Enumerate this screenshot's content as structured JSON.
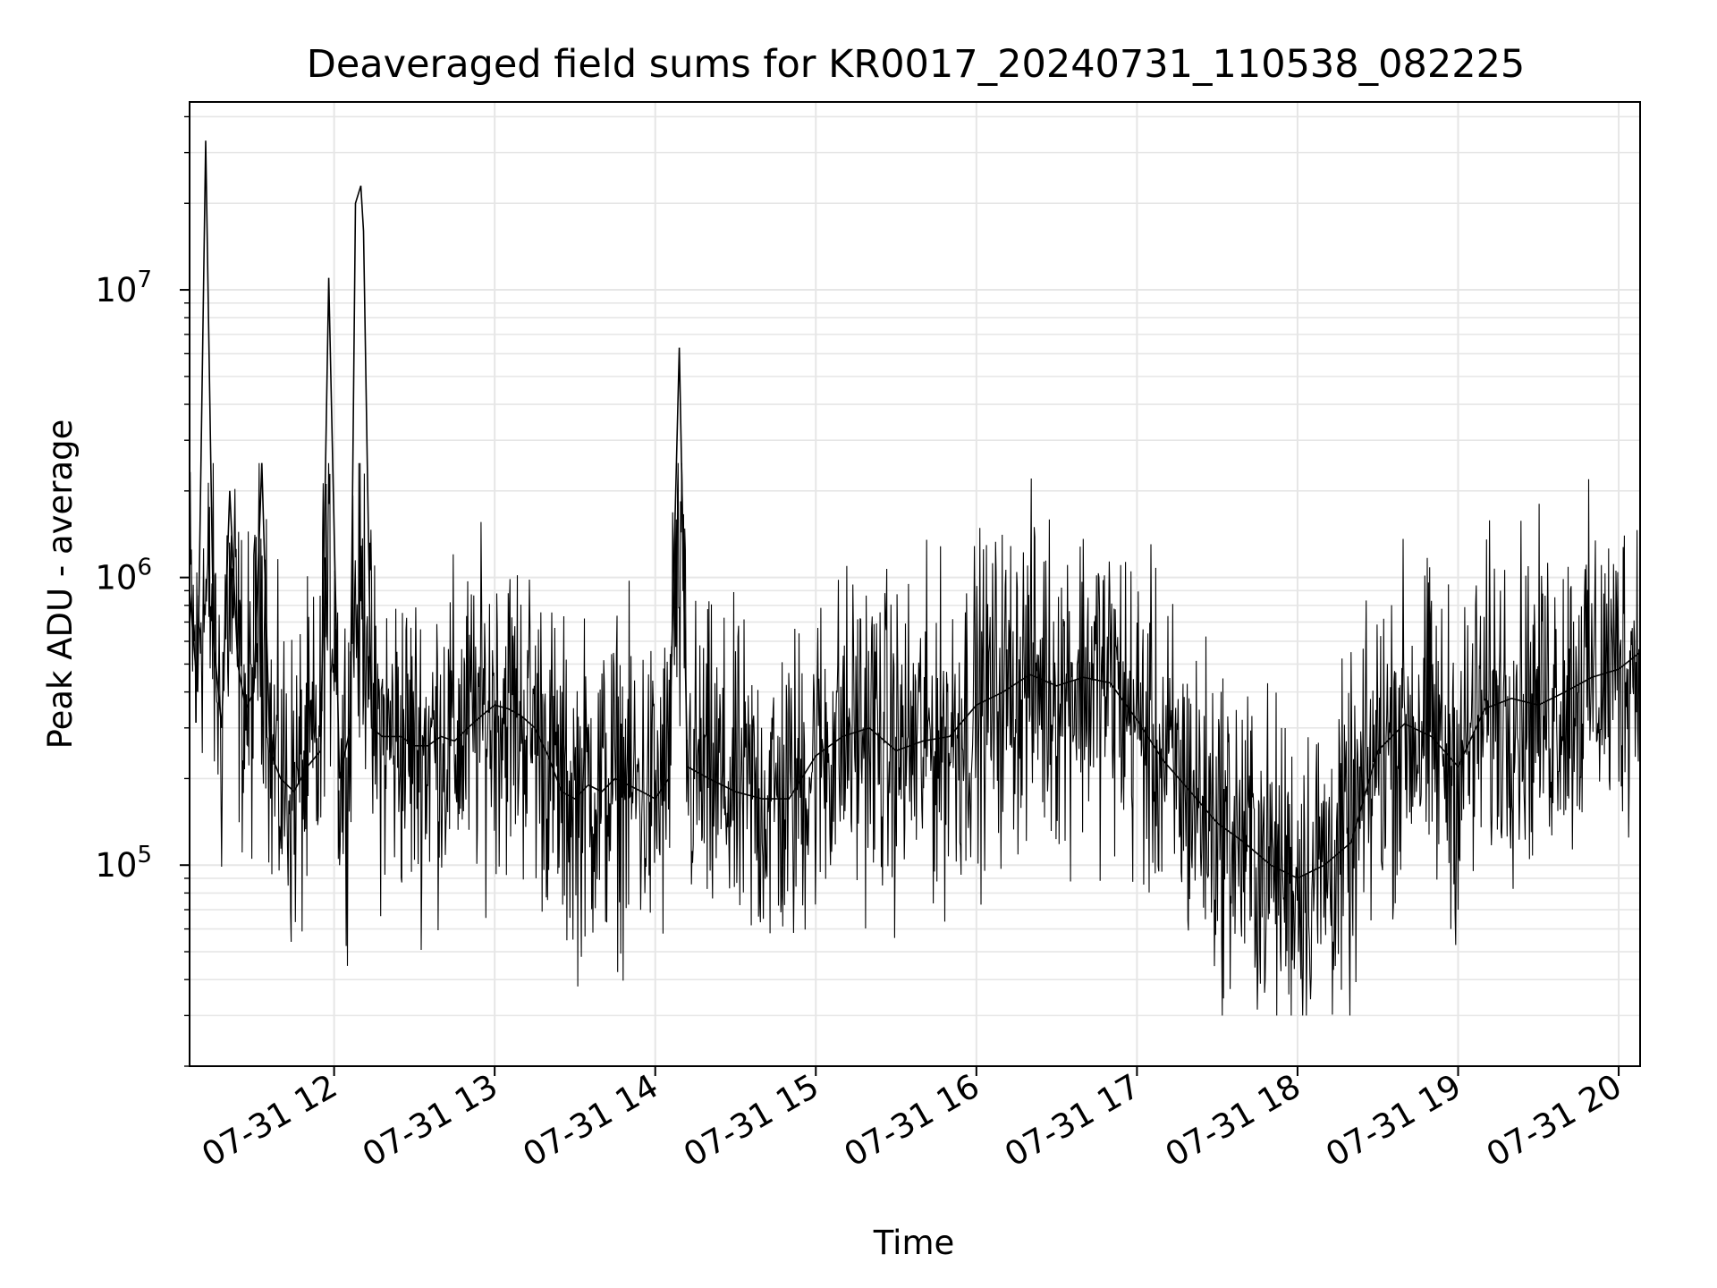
{
  "chart_data": {
    "type": "line",
    "title": "Deaveraged field sums for KR0017_20240731_110538_082225",
    "xlabel": "Time",
    "ylabel": "Peak ADU - average",
    "xscale": "time",
    "yscale": "log",
    "xlim": [
      "2024-07-31T11:06:00",
      "2024-07-31T20:08:00"
    ],
    "ylim": [
      20000,
      45000000
    ],
    "x_ticks": [
      "07-31 12",
      "07-31 13",
      "07-31 14",
      "07-31 15",
      "07-31 16",
      "07-31 17",
      "07-31 18",
      "07-31 19",
      "07-31 20"
    ],
    "y_ticks": [
      {
        "value": 100000,
        "base": "10",
        "exp": "5"
      },
      {
        "value": 1000000,
        "base": "10",
        "exp": "6"
      },
      {
        "value": 10000000,
        "base": "10",
        "exp": "7"
      }
    ],
    "grid": true,
    "line_color": "#000000",
    "series": [
      {
        "x": [
          "2024-07-31T11:06:00",
          "2024-07-31T11:09:00",
          "2024-07-31T11:12:00",
          "2024-07-31T11:15:00",
          "2024-07-31T11:18:00",
          "2024-07-31T11:21:00",
          "2024-07-31T11:24:00",
          "2024-07-31T11:27:00",
          "2024-07-31T11:30:00",
          "2024-07-31T11:33:00",
          "2024-07-31T11:36:00",
          "2024-07-31T11:40:00",
          "2024-07-31T11:45:00",
          "2024-07-31T11:50:00",
          "2024-07-31T11:55:00",
          "2024-07-31T11:58:00",
          "2024-07-31T12:02:00",
          "2024-07-31T12:06:00",
          "2024-07-31T12:08:00",
          "2024-07-31T12:10:00",
          "2024-07-31T12:11:00",
          "2024-07-31T12:14:00",
          "2024-07-31T12:18:00",
          "2024-07-31T12:25:00",
          "2024-07-31T12:30:00",
          "2024-07-31T12:35:00",
          "2024-07-31T12:40:00",
          "2024-07-31T12:45:00",
          "2024-07-31T12:50:00",
          "2024-07-31T12:55:00",
          "2024-07-31T13:00:00",
          "2024-07-31T13:05:00",
          "2024-07-31T13:10:00",
          "2024-07-31T13:15:00",
          "2024-07-31T13:20:00",
          "2024-07-31T13:25:00",
          "2024-07-31T13:30:00",
          "2024-07-31T13:35:00",
          "2024-07-31T13:40:00",
          "2024-07-31T13:45:00",
          "2024-07-31T13:50:00",
          "2024-07-31T13:55:00",
          "2024-07-31T14:00:00",
          "2024-07-31T14:05:00",
          "2024-07-31T14:09:00",
          "2024-07-31T14:12:00",
          "2024-07-31T14:20:00",
          "2024-07-31T14:30:00",
          "2024-07-31T14:40:00",
          "2024-07-31T14:50:00",
          "2024-07-31T15:00:00",
          "2024-07-31T15:10:00",
          "2024-07-31T15:20:00",
          "2024-07-31T15:30:00",
          "2024-07-31T15:40:00",
          "2024-07-31T15:50:00",
          "2024-07-31T16:00:00",
          "2024-07-31T16:10:00",
          "2024-07-31T16:20:00",
          "2024-07-31T16:30:00",
          "2024-07-31T16:40:00",
          "2024-07-31T16:50:00",
          "2024-07-31T17:00:00",
          "2024-07-31T17:10:00",
          "2024-07-31T17:20:00",
          "2024-07-31T17:30:00",
          "2024-07-31T17:40:00",
          "2024-07-31T17:50:00",
          "2024-07-31T18:00:00",
          "2024-07-31T18:10:00",
          "2024-07-31T18:20:00",
          "2024-07-31T18:30:00",
          "2024-07-31T18:40:00",
          "2024-07-31T18:50:00",
          "2024-07-31T19:00:00",
          "2024-07-31T19:10:00",
          "2024-07-31T19:20:00",
          "2024-07-31T19:30:00",
          "2024-07-31T19:40:00",
          "2024-07-31T19:50:00",
          "2024-07-31T20:00:00",
          "2024-07-31T20:08:00"
        ],
        "y": [
          900000,
          400000,
          33000000,
          600000,
          300000,
          2000000,
          500000,
          350000,
          400000,
          2500000,
          250000,
          200000,
          180000,
          220000,
          250000,
          11000000,
          200000,
          300000,
          20000000,
          23000000,
          16000000,
          300000,
          280000,
          280000,
          260000,
          260000,
          280000,
          270000,
          300000,
          330000,
          360000,
          350000,
          330000,
          300000,
          240000,
          180000,
          170000,
          190000,
          180000,
          200000,
          190000,
          180000,
          170000,
          200000,
          6300000,
          220000,
          200000,
          180000,
          170000,
          170000,
          240000,
          280000,
          300000,
          250000,
          270000,
          280000,
          360000,
          400000,
          460000,
          420000,
          450000,
          430000,
          320000,
          230000,
          180000,
          140000,
          120000,
          100000,
          90000,
          100000,
          120000,
          250000,
          310000,
          280000,
          220000,
          350000,
          380000,
          360000,
          400000,
          450000,
          480000,
          550000
        ]
      }
    ]
  }
}
